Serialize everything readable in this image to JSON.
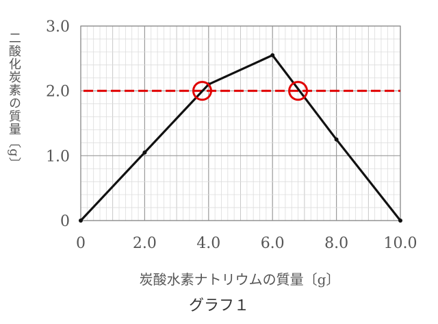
{
  "chart_data": {
    "type": "line",
    "xlabel": "炭酸水素ナトリウムの質量〔g〕",
    "ylabel": "二酸化炭素の質量〔g〕",
    "caption": "グラフ１",
    "xlim": [
      0,
      10
    ],
    "ylim": [
      0,
      3
    ],
    "x_ticks": [
      "0",
      "2.0",
      "4.0",
      "6.0",
      "8.0",
      "10.0"
    ],
    "y_ticks": [
      "0",
      "1.0",
      "2.0",
      "3.0"
    ],
    "grid": true,
    "series": [
      {
        "x": [
          0,
          2.0,
          4.0,
          6.0,
          8.0,
          10.0
        ],
        "y": [
          0,
          1.05,
          2.1,
          2.55,
          1.25,
          0
        ],
        "color": "#111111",
        "style": "solid"
      }
    ],
    "reference_line": {
      "y": 2.0,
      "color": "#e00000",
      "style": "dashed"
    },
    "highlights": [
      {
        "x": 3.8,
        "y": 2.0,
        "color": "#e00000"
      },
      {
        "x": 6.8,
        "y": 2.0,
        "color": "#e00000"
      }
    ]
  }
}
